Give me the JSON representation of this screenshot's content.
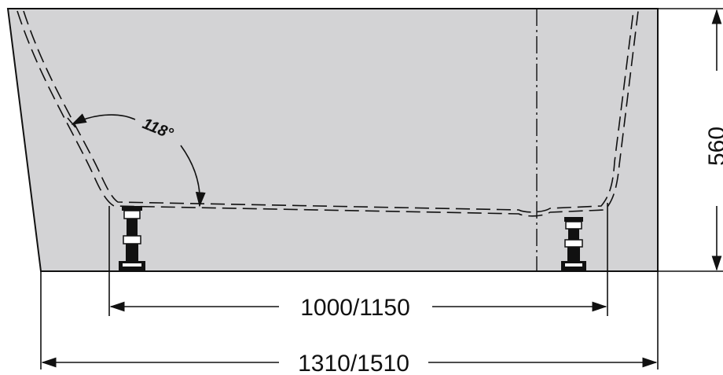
{
  "drawing": {
    "angle_label": "118°",
    "inner_width_label": "1000/1150",
    "overall_length_label": "1310/1510",
    "height_label": "560"
  },
  "colors": {
    "body_fill": "#d3d3d5",
    "line": "#111111",
    "feet": "#1a1a1a"
  }
}
